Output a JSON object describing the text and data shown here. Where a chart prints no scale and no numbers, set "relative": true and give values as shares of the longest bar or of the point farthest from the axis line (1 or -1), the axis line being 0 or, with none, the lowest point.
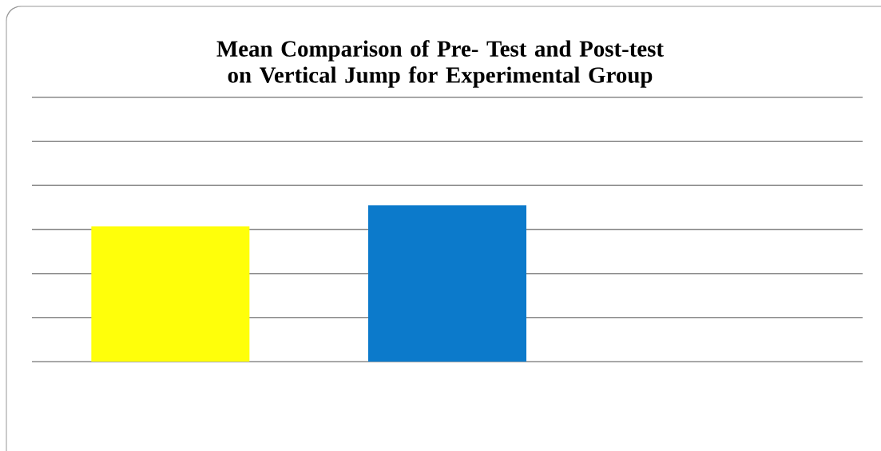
{
  "chart_data": {
    "type": "bar",
    "title": "Mean Comparison of Pre- Test and Post-test on Vertical Jump for Experimental Group",
    "categories": [
      null,
      null
    ],
    "values": [
      0.867,
      1
    ],
    "colors": [
      "#ffff0a",
      "#0c7acb"
    ],
    "relative": true,
    "grid": "y"
  }
}
